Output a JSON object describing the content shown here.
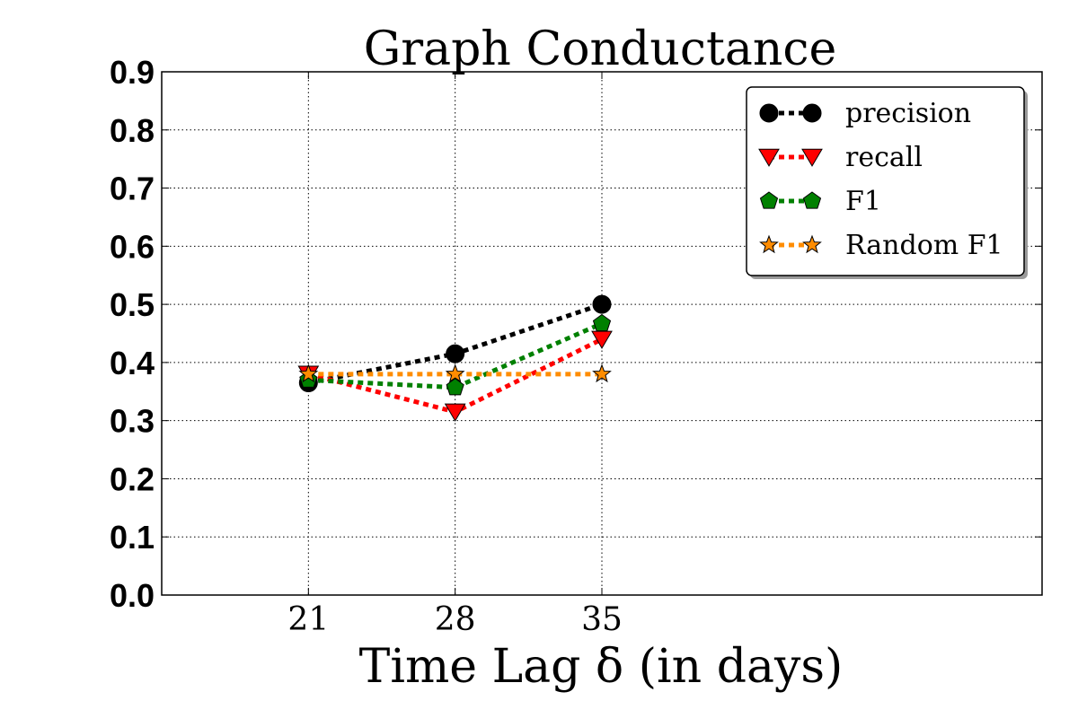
{
  "chart_data": {
    "type": "line",
    "title": "Graph Conductance",
    "xlabel": "Time Lag δ (in days)",
    "ylabel": "",
    "x": [
      21,
      28,
      35
    ],
    "xlim": [
      14,
      56
    ],
    "ylim": [
      0.0,
      0.9
    ],
    "yticks": [
      "0.0",
      "0.1",
      "0.2",
      "0.3",
      "0.4",
      "0.5",
      "0.6",
      "0.7",
      "0.8",
      "0.9"
    ],
    "xticks": [
      "21",
      "28",
      "35"
    ],
    "grid": true,
    "legend_position": "top-right",
    "series": [
      {
        "name": "precision",
        "values": [
          0.365,
          0.415,
          0.5
        ],
        "color": "#000000",
        "marker": "circle"
      },
      {
        "name": "recall",
        "values": [
          0.38,
          0.315,
          0.44
        ],
        "color": "#ff0000",
        "marker": "triangle-down"
      },
      {
        "name": "F1",
        "values": [
          0.37,
          0.357,
          0.467
        ],
        "color": "#008000",
        "marker": "pentagon"
      },
      {
        "name": "Random F1",
        "values": [
          0.38,
          0.38,
          0.38
        ],
        "color": "#ff8c00",
        "marker": "star"
      }
    ]
  }
}
